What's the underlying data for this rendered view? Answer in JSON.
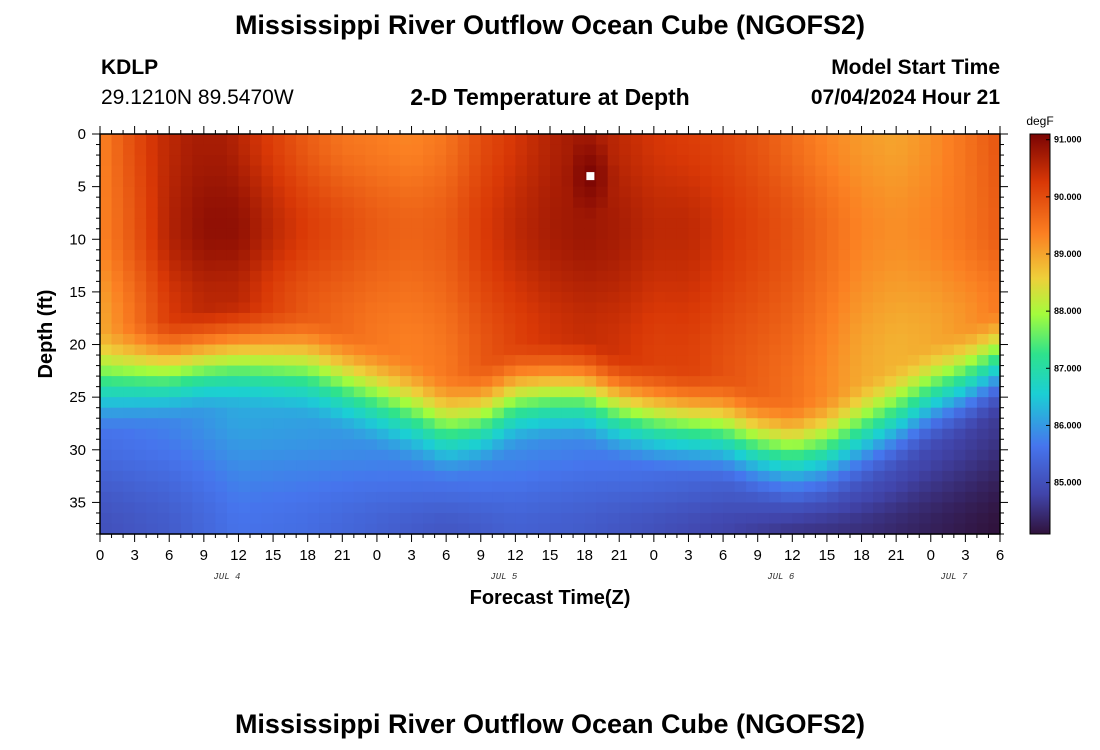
{
  "header": {
    "title": "Mississippi River Outflow Ocean Cube (NGOFS2)",
    "station_id": "KDLP",
    "station_coords": "29.1210N  89.5470W",
    "subtitle": "2-D Temperature at Depth",
    "model_start_label": "Model Start Time",
    "model_start_value": "07/04/2024 Hour 21"
  },
  "footer": {
    "title": "Mississippi River Outflow Ocean Cube (NGOFS2)"
  },
  "chart_data": {
    "type": "heatmap",
    "title": "2-D Temperature at Depth",
    "xlabel": "Forecast Time(Z)",
    "ylabel": "Depth (ft)",
    "x_range_hours": [
      0,
      78
    ],
    "x_ticks": [
      "0",
      "3",
      "6",
      "9",
      "12",
      "15",
      "18",
      "21",
      "0",
      "3",
      "6",
      "9",
      "12",
      "15",
      "18",
      "21",
      "0",
      "3",
      "6",
      "9",
      "12",
      "15",
      "18",
      "21",
      "0",
      "3",
      "6"
    ],
    "date_labels": [
      {
        "label": "JUL 4",
        "hour": 11
      },
      {
        "label": "JUL 5",
        "hour": 35
      },
      {
        "label": "JUL 6",
        "hour": 59
      },
      {
        "label": "JUL 7",
        "hour": 74
      }
    ],
    "y_range_ft": [
      0,
      38
    ],
    "y_ticks": [
      0,
      5,
      10,
      15,
      20,
      25,
      30,
      35
    ],
    "colorbar": {
      "unit": "degF",
      "range": [
        84.1,
        91.1
      ],
      "tick_labels": [
        "91.000",
        "90.000",
        "89.000",
        "88.000",
        "87.000",
        "86.000",
        "85.000"
      ],
      "tick_values": [
        91,
        90,
        89,
        88,
        87,
        86,
        85
      ]
    },
    "thermocline_depth_ft": [
      [
        0,
        24
      ],
      [
        3,
        23.5
      ],
      [
        6,
        23
      ],
      [
        9,
        22
      ],
      [
        12,
        21.5
      ],
      [
        15,
        22
      ],
      [
        18,
        22.5
      ],
      [
        21,
        24
      ],
      [
        24,
        25.5
      ],
      [
        27,
        27
      ],
      [
        30,
        28.5
      ],
      [
        33,
        27.5
      ],
      [
        36,
        25.5
      ],
      [
        39,
        25
      ],
      [
        42,
        25
      ],
      [
        45,
        26.5
      ],
      [
        48,
        27.5
      ],
      [
        51,
        28
      ],
      [
        54,
        28.5
      ],
      [
        57,
        30
      ],
      [
        60,
        31
      ],
      [
        63,
        30.5
      ],
      [
        66,
        29
      ],
      [
        69,
        27.5
      ],
      [
        72,
        25.5
      ],
      [
        75,
        24
      ],
      [
        78,
        22
      ]
    ],
    "surface_temp_degF": [
      [
        0,
        89.3
      ],
      [
        2,
        89.8
      ],
      [
        5,
        90.4
      ],
      [
        8,
        90.7
      ],
      [
        11,
        90.7
      ],
      [
        14,
        90.3
      ],
      [
        18,
        89.8
      ],
      [
        21,
        89.5
      ],
      [
        24,
        89.4
      ],
      [
        27,
        89.3
      ],
      [
        30,
        89.5
      ],
      [
        33,
        90.0
      ],
      [
        36,
        90.3
      ],
      [
        39,
        90.6
      ],
      [
        42,
        90.8
      ],
      [
        45,
        90.5
      ],
      [
        48,
        90.3
      ],
      [
        51,
        90.2
      ],
      [
        54,
        90.1
      ],
      [
        57,
        89.9
      ],
      [
        60,
        89.6
      ],
      [
        63,
        89.3
      ],
      [
        66,
        89.1
      ],
      [
        69,
        89.0
      ],
      [
        72,
        89.2
      ],
      [
        75,
        89.5
      ],
      [
        78,
        89.9
      ]
    ],
    "warm_core_temp_degF": [
      [
        0,
        89.3
      ],
      [
        3,
        89.9
      ],
      [
        6,
        90.6
      ],
      [
        9,
        90.9
      ],
      [
        12,
        90.9
      ],
      [
        15,
        90.5
      ],
      [
        18,
        90.2
      ],
      [
        21,
        90.0
      ],
      [
        24,
        89.8
      ],
      [
        27,
        89.7
      ],
      [
        30,
        89.8
      ],
      [
        33,
        90.2
      ],
      [
        36,
        90.5
      ],
      [
        39,
        90.7
      ],
      [
        42,
        90.8
      ],
      [
        45,
        90.7
      ],
      [
        48,
        90.5
      ],
      [
        51,
        90.5
      ],
      [
        54,
        90.3
      ],
      [
        57,
        90.1
      ],
      [
        60,
        89.9
      ],
      [
        63,
        89.6
      ],
      [
        66,
        89.3
      ],
      [
        69,
        89.2
      ],
      [
        72,
        89.3
      ],
      [
        75,
        89.5
      ],
      [
        78,
        89.8
      ]
    ],
    "bottom_temp_degF": [
      [
        0,
        85.0
      ],
      [
        6,
        85.2
      ],
      [
        12,
        85.6
      ],
      [
        18,
        85.5
      ],
      [
        24,
        85.3
      ],
      [
        30,
        85.1
      ],
      [
        36,
        85.3
      ],
      [
        42,
        85.2
      ],
      [
        48,
        85.0
      ],
      [
        54,
        84.8
      ],
      [
        60,
        84.6
      ],
      [
        66,
        84.5
      ],
      [
        72,
        84.3
      ],
      [
        78,
        84.1
      ]
    ],
    "hotspot": {
      "hour": 42.5,
      "depth_ft": 4,
      "temp_degF": 91.1
    }
  }
}
